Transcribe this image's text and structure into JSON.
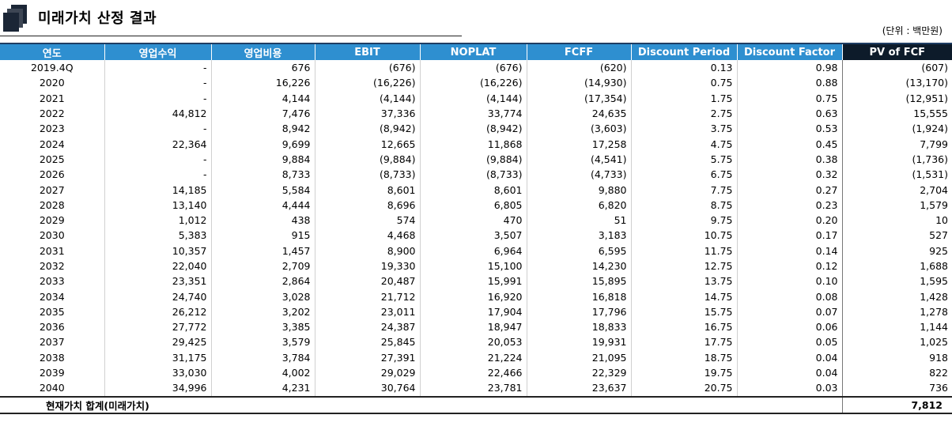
{
  "title": "미래가치 산정 결과",
  "unit": "(단위 : 백만원)",
  "columns": [
    "연도",
    "영업수익",
    "영업비용",
    "EBIT",
    "NOPLAT",
    "FCFF",
    "Discount Period",
    "Discount Factor",
    "PV of FCF"
  ],
  "rows": [
    [
      "2019.4Q",
      "-",
      "676",
      "(676)",
      "(676)",
      "(620)",
      "0.13",
      "0.98",
      "(607)"
    ],
    [
      "2020",
      "-",
      "16,226",
      "(16,226)",
      "(16,226)",
      "(14,930)",
      "0.75",
      "0.88",
      "(13,170)"
    ],
    [
      "2021",
      "-",
      "4,144",
      "(4,144)",
      "(4,144)",
      "(17,354)",
      "1.75",
      "0.75",
      "(12,951)"
    ],
    [
      "2022",
      "44,812",
      "7,476",
      "37,336",
      "33,774",
      "24,635",
      "2.75",
      "0.63",
      "15,555"
    ],
    [
      "2023",
      "-",
      "8,942",
      "(8,942)",
      "(8,942)",
      "(3,603)",
      "3.75",
      "0.53",
      "(1,924)"
    ],
    [
      "2024",
      "22,364",
      "9,699",
      "12,665",
      "11,868",
      "17,258",
      "4.75",
      "0.45",
      "7,799"
    ],
    [
      "2025",
      "-",
      "9,884",
      "(9,884)",
      "(9,884)",
      "(4,541)",
      "5.75",
      "0.38",
      "(1,736)"
    ],
    [
      "2026",
      "-",
      "8,733",
      "(8,733)",
      "(8,733)",
      "(4,733)",
      "6.75",
      "0.32",
      "(1,531)"
    ],
    [
      "2027",
      "14,185",
      "5,584",
      "8,601",
      "8,601",
      "9,880",
      "7.75",
      "0.27",
      "2,704"
    ],
    [
      "2028",
      "13,140",
      "4,444",
      "8,696",
      "6,805",
      "6,820",
      "8.75",
      "0.23",
      "1,579"
    ],
    [
      "2029",
      "1,012",
      "438",
      "574",
      "470",
      "51",
      "9.75",
      "0.20",
      "10"
    ],
    [
      "2030",
      "5,383",
      "915",
      "4,468",
      "3,507",
      "3,183",
      "10.75",
      "0.17",
      "527"
    ],
    [
      "2031",
      "10,357",
      "1,457",
      "8,900",
      "6,964",
      "6,595",
      "11.75",
      "0.14",
      "925"
    ],
    [
      "2032",
      "22,040",
      "2,709",
      "19,330",
      "15,100",
      "14,230",
      "12.75",
      "0.12",
      "1,688"
    ],
    [
      "2033",
      "23,351",
      "2,864",
      "20,487",
      "15,991",
      "15,895",
      "13.75",
      "0.10",
      "1,595"
    ],
    [
      "2034",
      "24,740",
      "3,028",
      "21,712",
      "16,920",
      "16,818",
      "14.75",
      "0.08",
      "1,428"
    ],
    [
      "2035",
      "26,212",
      "3,202",
      "23,011",
      "17,904",
      "17,796",
      "15.75",
      "0.07",
      "1,278"
    ],
    [
      "2036",
      "27,772",
      "3,385",
      "24,387",
      "18,947",
      "18,833",
      "16.75",
      "0.06",
      "1,144"
    ],
    [
      "2037",
      "29,425",
      "3,579",
      "25,845",
      "20,053",
      "19,931",
      "17.75",
      "0.05",
      "1,025"
    ],
    [
      "2038",
      "31,175",
      "3,784",
      "27,391",
      "21,224",
      "21,095",
      "18.75",
      "0.04",
      "918"
    ],
    [
      "2039",
      "33,030",
      "4,002",
      "29,029",
      "22,466",
      "22,329",
      "19.75",
      "0.04",
      "822"
    ],
    [
      "2040",
      "34,996",
      "4,231",
      "30,764",
      "23,781",
      "23,637",
      "20.75",
      "0.03",
      "736"
    ]
  ],
  "total": {
    "label": "현재가치 합계(미래가치)",
    "value": "7,812"
  },
  "colors": {
    "header_blue": "#2e8fd0",
    "header_dark": "#0d1b2a",
    "text": "#000000"
  }
}
